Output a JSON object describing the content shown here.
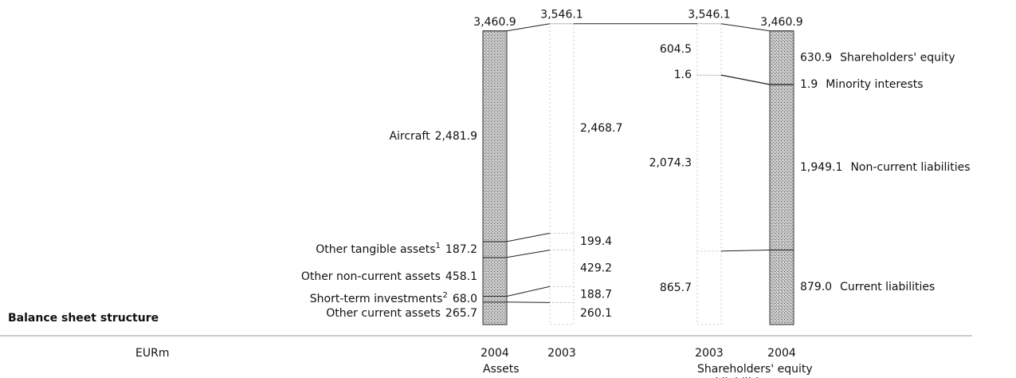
{
  "chart_data": {
    "type": "stacked_bar",
    "title": "Balance sheet structure",
    "unit_label": "EURm",
    "color": "#a9a9a9",
    "highlight": "2004",
    "ylim": [
      0,
      3600
    ],
    "groups": [
      {
        "label": [
          "Assets"
        ],
        "columns": [
          "2004",
          "2003"
        ],
        "totals": [
          3460.9,
          3546.1
        ],
        "total_labels": [
          "3,460.9",
          "3,546.1"
        ],
        "series": [
          {
            "name": "Other current assets",
            "values": [
              265.7,
              260.1
            ],
            "value_labels": [
              "265.7",
              "260.1"
            ]
          },
          {
            "name": "Short-term investments",
            "footnote": "2",
            "values": [
              68.0,
              188.7
            ],
            "value_labels": [
              "68.0",
              "188.7"
            ]
          },
          {
            "name": "Other non-current assets",
            "values": [
              458.1,
              429.2
            ],
            "value_labels": [
              "458.1",
              "429.2"
            ]
          },
          {
            "name": "Other tangible assets",
            "footnote": "1",
            "values": [
              187.2,
              199.4
            ],
            "value_labels": [
              "187.2",
              "199.4"
            ]
          },
          {
            "name": "Aircraft",
            "values": [
              2481.9,
              2468.7
            ],
            "value_labels": [
              "2,481.9",
              "2,468.7"
            ]
          }
        ]
      },
      {
        "label": [
          "Shareholders' equity",
          "and liabilities"
        ],
        "columns": [
          "2003",
          "2004"
        ],
        "totals": [
          3546.1,
          3460.9
        ],
        "total_labels": [
          "3,546.1",
          "3,460.9"
        ],
        "series": [
          {
            "name": "Current liabilities",
            "values": [
              865.7,
              879.0
            ],
            "value_labels": [
              "865.7",
              "879.0"
            ]
          },
          {
            "name": "Non-current liabilities",
            "values": [
              2074.3,
              1949.1
            ],
            "value_labels": [
              "2,074.3",
              "1,949.1"
            ]
          },
          {
            "name": "Minority interests",
            "values": [
              1.6,
              1.9
            ],
            "value_labels": [
              "1.6",
              "1.9"
            ]
          },
          {
            "name": "Shareholders' equity",
            "values": [
              604.5,
              630.9
            ],
            "value_labels": [
              "604.5",
              "630.9"
            ]
          }
        ]
      }
    ]
  }
}
